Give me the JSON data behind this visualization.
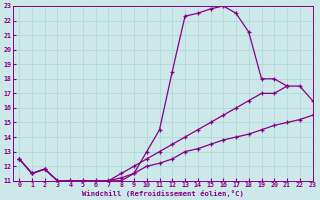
{
  "xlabel": "Windchill (Refroidissement éolien,°C)",
  "background_color": "#cce8e8",
  "line_color": "#880088",
  "xlim": [
    -0.5,
    23
  ],
  "ylim": [
    11,
    23
  ],
  "xticks": [
    0,
    1,
    2,
    3,
    4,
    5,
    6,
    7,
    8,
    9,
    10,
    11,
    12,
    13,
    14,
    15,
    16,
    17,
    18,
    19,
    20,
    21,
    22,
    23
  ],
  "yticks": [
    11,
    12,
    13,
    14,
    15,
    16,
    17,
    18,
    19,
    20,
    21,
    22,
    23
  ],
  "line1_x": [
    0,
    1,
    2,
    3,
    4,
    5,
    6,
    7,
    8,
    9,
    10,
    11,
    12,
    13,
    14,
    15,
    16,
    17,
    18,
    19,
    20,
    21
  ],
  "line1_y": [
    12.5,
    11.5,
    11.8,
    11.0,
    11.0,
    11.0,
    11.0,
    11.0,
    11.0,
    11.5,
    13.0,
    14.5,
    18.5,
    22.3,
    22.5,
    22.8,
    23.0,
    22.5,
    21.2,
    18.0,
    18.0,
    17.5
  ],
  "line2_x": [
    0,
    1,
    2,
    3,
    4,
    5,
    6,
    7,
    8,
    9,
    10,
    11,
    12,
    13,
    14,
    15,
    16,
    17,
    18,
    19,
    20,
    21,
    22,
    23
  ],
  "line2_y": [
    12.5,
    11.5,
    11.8,
    11.0,
    11.0,
    11.0,
    11.0,
    11.0,
    11.5,
    12.0,
    12.5,
    13.0,
    13.5,
    14.0,
    14.5,
    15.0,
    15.5,
    16.0,
    16.5,
    17.0,
    17.0,
    17.5,
    17.5,
    16.5
  ],
  "line3_x": [
    0,
    1,
    2,
    3,
    4,
    5,
    6,
    7,
    8,
    9,
    10,
    11,
    12,
    13,
    14,
    15,
    16,
    17,
    18,
    19,
    20,
    21,
    22,
    23
  ],
  "line3_y": [
    12.5,
    11.5,
    11.8,
    11.0,
    11.0,
    11.0,
    11.0,
    11.0,
    11.2,
    11.5,
    12.0,
    12.2,
    12.5,
    13.0,
    13.2,
    13.5,
    13.8,
    14.0,
    14.2,
    14.5,
    14.8,
    15.0,
    15.2,
    15.5
  ],
  "grid_color": "#aad8d8",
  "marker": "+",
  "markersize": 3.5,
  "linewidth": 0.9
}
